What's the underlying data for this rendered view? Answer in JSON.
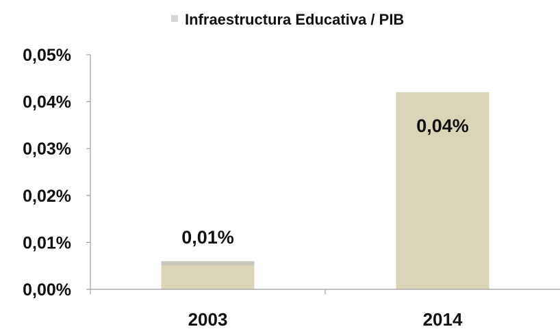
{
  "chart_data": {
    "type": "bar",
    "title": "",
    "xlabel": "",
    "ylabel": "",
    "categories": [
      "2003",
      "2014"
    ],
    "series": [
      {
        "name": "Infraestructura Educativa / PIB",
        "values": [
          0.0006,
          0.0042
        ],
        "data_labels": [
          "0,01%",
          "0,04%"
        ]
      }
    ],
    "ylim": [
      0,
      0.005
    ],
    "yticks": [
      0,
      0.001,
      0.002,
      0.003,
      0.004,
      0.005
    ],
    "ytick_labels": [
      "0,00%",
      "0,01%",
      "0,02%",
      "0,03%",
      "0,04%",
      "0,05%"
    ],
    "grid": false,
    "legend_position": "top",
    "colors": {
      "bar": "#DAD4B8",
      "bar_top_2003": "#C9C6C0",
      "axis": "#9E9E9E",
      "legend_swatch": "#D6D6D6"
    }
  }
}
